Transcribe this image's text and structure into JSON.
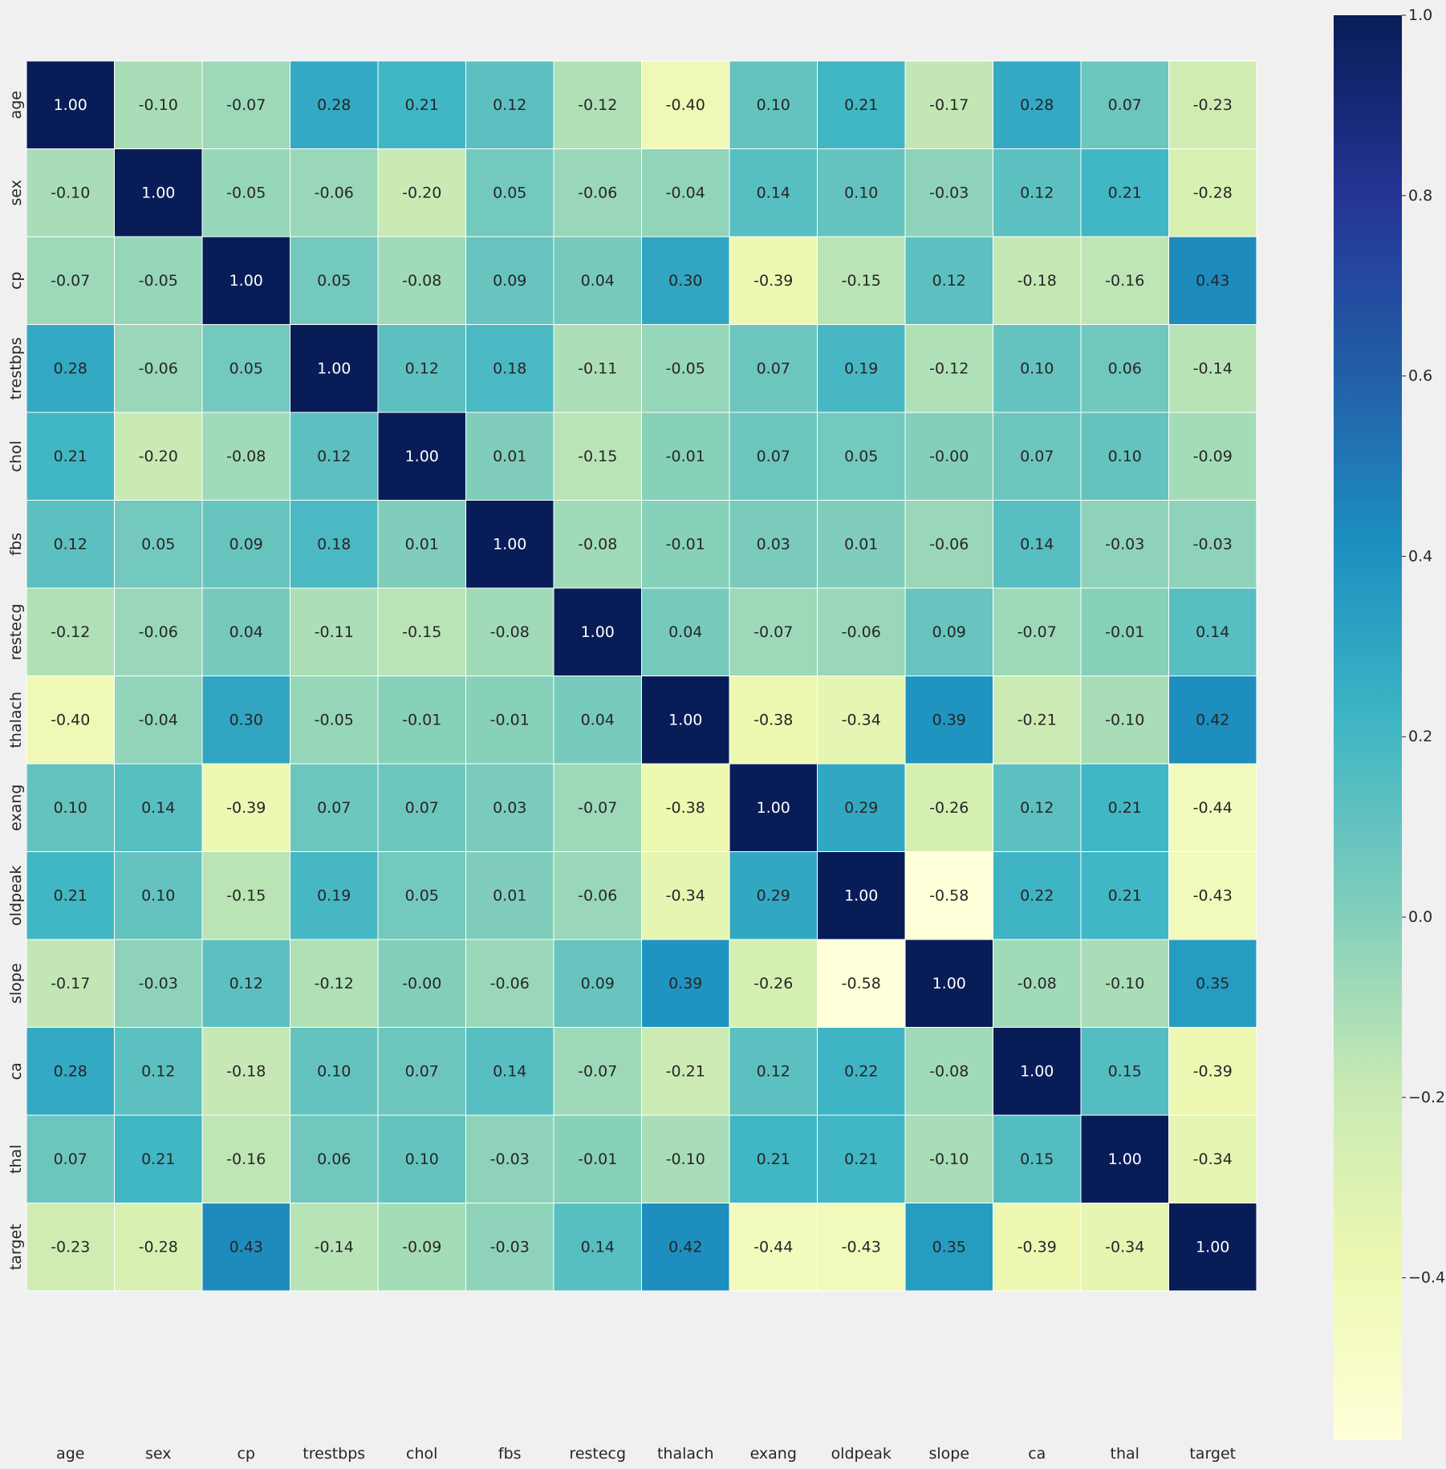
{
  "chart_data": {
    "type": "heatmap",
    "title": "",
    "xlabel": "",
    "ylabel": "",
    "variables": [
      "age",
      "sex",
      "cp",
      "trestbps",
      "chol",
      "fbs",
      "restecg",
      "thalach",
      "exang",
      "oldpeak",
      "slope",
      "ca",
      "thal",
      "target"
    ],
    "matrix": [
      [
        1.0,
        -0.1,
        -0.07,
        0.28,
        0.21,
        0.12,
        -0.12,
        -0.4,
        0.1,
        0.21,
        -0.17,
        0.28,
        0.07,
        -0.23
      ],
      [
        -0.1,
        1.0,
        -0.05,
        -0.06,
        -0.2,
        0.05,
        -0.06,
        -0.04,
        0.14,
        0.1,
        -0.03,
        0.12,
        0.21,
        -0.28
      ],
      [
        -0.07,
        -0.05,
        1.0,
        0.05,
        -0.08,
        0.09,
        0.04,
        0.3,
        -0.39,
        -0.15,
        0.12,
        -0.18,
        -0.16,
        0.43
      ],
      [
        0.28,
        -0.06,
        0.05,
        1.0,
        0.12,
        0.18,
        -0.11,
        -0.05,
        0.07,
        0.19,
        -0.12,
        0.1,
        0.06,
        -0.14
      ],
      [
        0.21,
        -0.2,
        -0.08,
        0.12,
        1.0,
        0.01,
        -0.15,
        -0.01,
        0.07,
        0.05,
        -0.0,
        0.07,
        0.1,
        -0.09
      ],
      [
        0.12,
        0.05,
        0.09,
        0.18,
        0.01,
        1.0,
        -0.08,
        -0.01,
        0.03,
        0.01,
        -0.06,
        0.14,
        -0.03,
        -0.03
      ],
      [
        -0.12,
        -0.06,
        0.04,
        -0.11,
        -0.15,
        -0.08,
        1.0,
        0.04,
        -0.07,
        -0.06,
        0.09,
        -0.07,
        -0.01,
        0.14
      ],
      [
        -0.4,
        -0.04,
        0.3,
        -0.05,
        -0.01,
        -0.01,
        0.04,
        1.0,
        -0.38,
        -0.34,
        0.39,
        -0.21,
        -0.1,
        0.42
      ],
      [
        0.1,
        0.14,
        -0.39,
        0.07,
        0.07,
        0.03,
        -0.07,
        -0.38,
        1.0,
        0.29,
        -0.26,
        0.12,
        0.21,
        -0.44
      ],
      [
        0.21,
        0.1,
        -0.15,
        0.19,
        0.05,
        0.01,
        -0.06,
        -0.34,
        0.29,
        1.0,
        -0.58,
        0.22,
        0.21,
        -0.43
      ],
      [
        -0.17,
        -0.03,
        0.12,
        -0.12,
        -0.0,
        -0.06,
        0.09,
        0.39,
        -0.26,
        -0.58,
        1.0,
        -0.08,
        -0.1,
        0.35
      ],
      [
        0.28,
        0.12,
        -0.18,
        0.1,
        0.07,
        0.14,
        -0.07,
        -0.21,
        0.12,
        0.22,
        -0.08,
        1.0,
        0.15,
        -0.39
      ],
      [
        0.07,
        0.21,
        -0.16,
        0.06,
        0.1,
        -0.03,
        -0.01,
        -0.1,
        0.21,
        0.21,
        -0.1,
        0.15,
        1.0,
        -0.34
      ],
      [
        -0.23,
        -0.28,
        0.43,
        -0.14,
        -0.09,
        -0.03,
        0.14,
        0.42,
        -0.44,
        -0.43,
        0.35,
        -0.39,
        -0.34,
        1.0
      ]
    ],
    "value_format": "2 decimals",
    "colormap": "YlGnBu",
    "color_range": [
      -0.58,
      1.0
    ],
    "colorbar_ticks": [
      "1.0",
      "0.8",
      "0.6",
      "0.4",
      "0.2",
      "0.0",
      "−0.2",
      "−0.4"
    ],
    "colorbar_tick_values": [
      1.0,
      0.8,
      0.6,
      0.4,
      0.2,
      0.0,
      -0.2,
      -0.4
    ],
    "colorbar_placement": "right",
    "grid": false,
    "colors": {
      "background": "#f0f0f0",
      "cell_border": "#ffffff",
      "text_dark": "#262626",
      "text_light": "#ffffff"
    }
  }
}
